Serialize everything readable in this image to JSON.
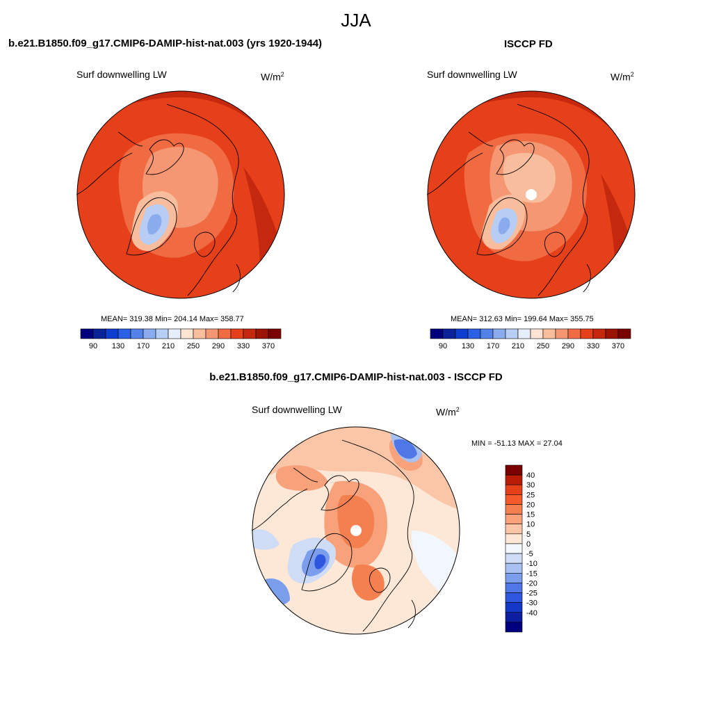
{
  "figure": {
    "title": "JJA",
    "left_panel": {
      "title": "b.e21.B1850.f09_g17.CMIP6-DAMIP-hist-nat.003 (yrs 1920-1944)",
      "variable": "Surf downwelling LW",
      "units_base": "W/m",
      "units_exp": "2",
      "stats": "MEAN= 319.38  Min= 204.14  Max= 358.77",
      "mean": 319.38,
      "min": 204.14,
      "max": 358.77
    },
    "right_panel": {
      "title": "ISCCP FD",
      "variable": "Surf downwelling LW",
      "units_base": "W/m",
      "units_exp": "2",
      "stats": "MEAN= 312.63  Min= 199.64  Max= 355.75",
      "mean": 312.63,
      "min": 199.64,
      "max": 355.75
    },
    "diff_panel": {
      "title": "b.e21.B1850.f09_g17.CMIP6-DAMIP-hist-nat.003 - ISCCP FD",
      "variable": "Surf downwelling LW",
      "units_base": "W/m",
      "units_exp": "2",
      "stats": "MIN = -51.13 MAX =  27.04",
      "min": -51.13,
      "max": 27.04
    }
  },
  "colorbar_main": {
    "colors": [
      "#00007f",
      "#0a2399",
      "#0f3fd1",
      "#2b5fe6",
      "#5582e8",
      "#8aabee",
      "#b8cdf4",
      "#e6eefa",
      "#fde3d2",
      "#f8bd9c",
      "#f59772",
      "#f06a42",
      "#e6401a",
      "#c4280e",
      "#9b1404",
      "#7a0000"
    ],
    "tick_labels": [
      "90",
      "130",
      "170",
      "210",
      "250",
      "290",
      "330",
      "370"
    ],
    "tick_positions": [
      1,
      3,
      5,
      7,
      9,
      11,
      13,
      15
    ]
  },
  "colorbar_diff": {
    "colors_top_to_bottom": [
      "#7a0000",
      "#b81c04",
      "#e6401a",
      "#f55a2a",
      "#f5804f",
      "#f8a27c",
      "#fbc6a8",
      "#fde7d7",
      "#f2f6fd",
      "#cfdcf6",
      "#a9c1f1",
      "#7b9eec",
      "#4f78e6",
      "#2e56de",
      "#1438c8",
      "#0d1fa0",
      "#00007f"
    ],
    "tick_labels": [
      "40",
      "30",
      "25",
      "20",
      "15",
      "10",
      "5",
      "0",
      "-5",
      "-10",
      "-15",
      "-20",
      "-25",
      "-30",
      "-40"
    ]
  },
  "chart_data": [
    {
      "type": "heatmap",
      "title": "b.e21.B1850.f09_g17.CMIP6-DAMIP-hist-nat.003 (yrs 1920-1944)",
      "variable": "Surf downwelling LW",
      "units": "W/m2",
      "projection": "north polar stereographic",
      "colorbar_levels": [
        90,
        130,
        170,
        210,
        250,
        290,
        330,
        370
      ],
      "mean": 319.38,
      "min": 204.14,
      "max": 358.77
    },
    {
      "type": "heatmap",
      "title": "ISCCP FD",
      "variable": "Surf downwelling LW",
      "units": "W/m2",
      "projection": "north polar stereographic",
      "colorbar_levels": [
        90,
        130,
        170,
        210,
        250,
        290,
        330,
        370
      ],
      "mean": 312.63,
      "min": 199.64,
      "max": 355.75
    },
    {
      "type": "heatmap",
      "title": "b.e21.B1850.f09_g17.CMIP6-DAMIP-hist-nat.003 - ISCCP FD",
      "variable": "Surf downwelling LW",
      "units": "W/m2",
      "projection": "north polar stereographic",
      "colorbar_levels": [
        -40,
        -30,
        -25,
        -20,
        -15,
        -10,
        -5,
        0,
        5,
        10,
        15,
        20,
        25,
        30,
        40
      ],
      "min": -51.13,
      "max": 27.04
    }
  ]
}
